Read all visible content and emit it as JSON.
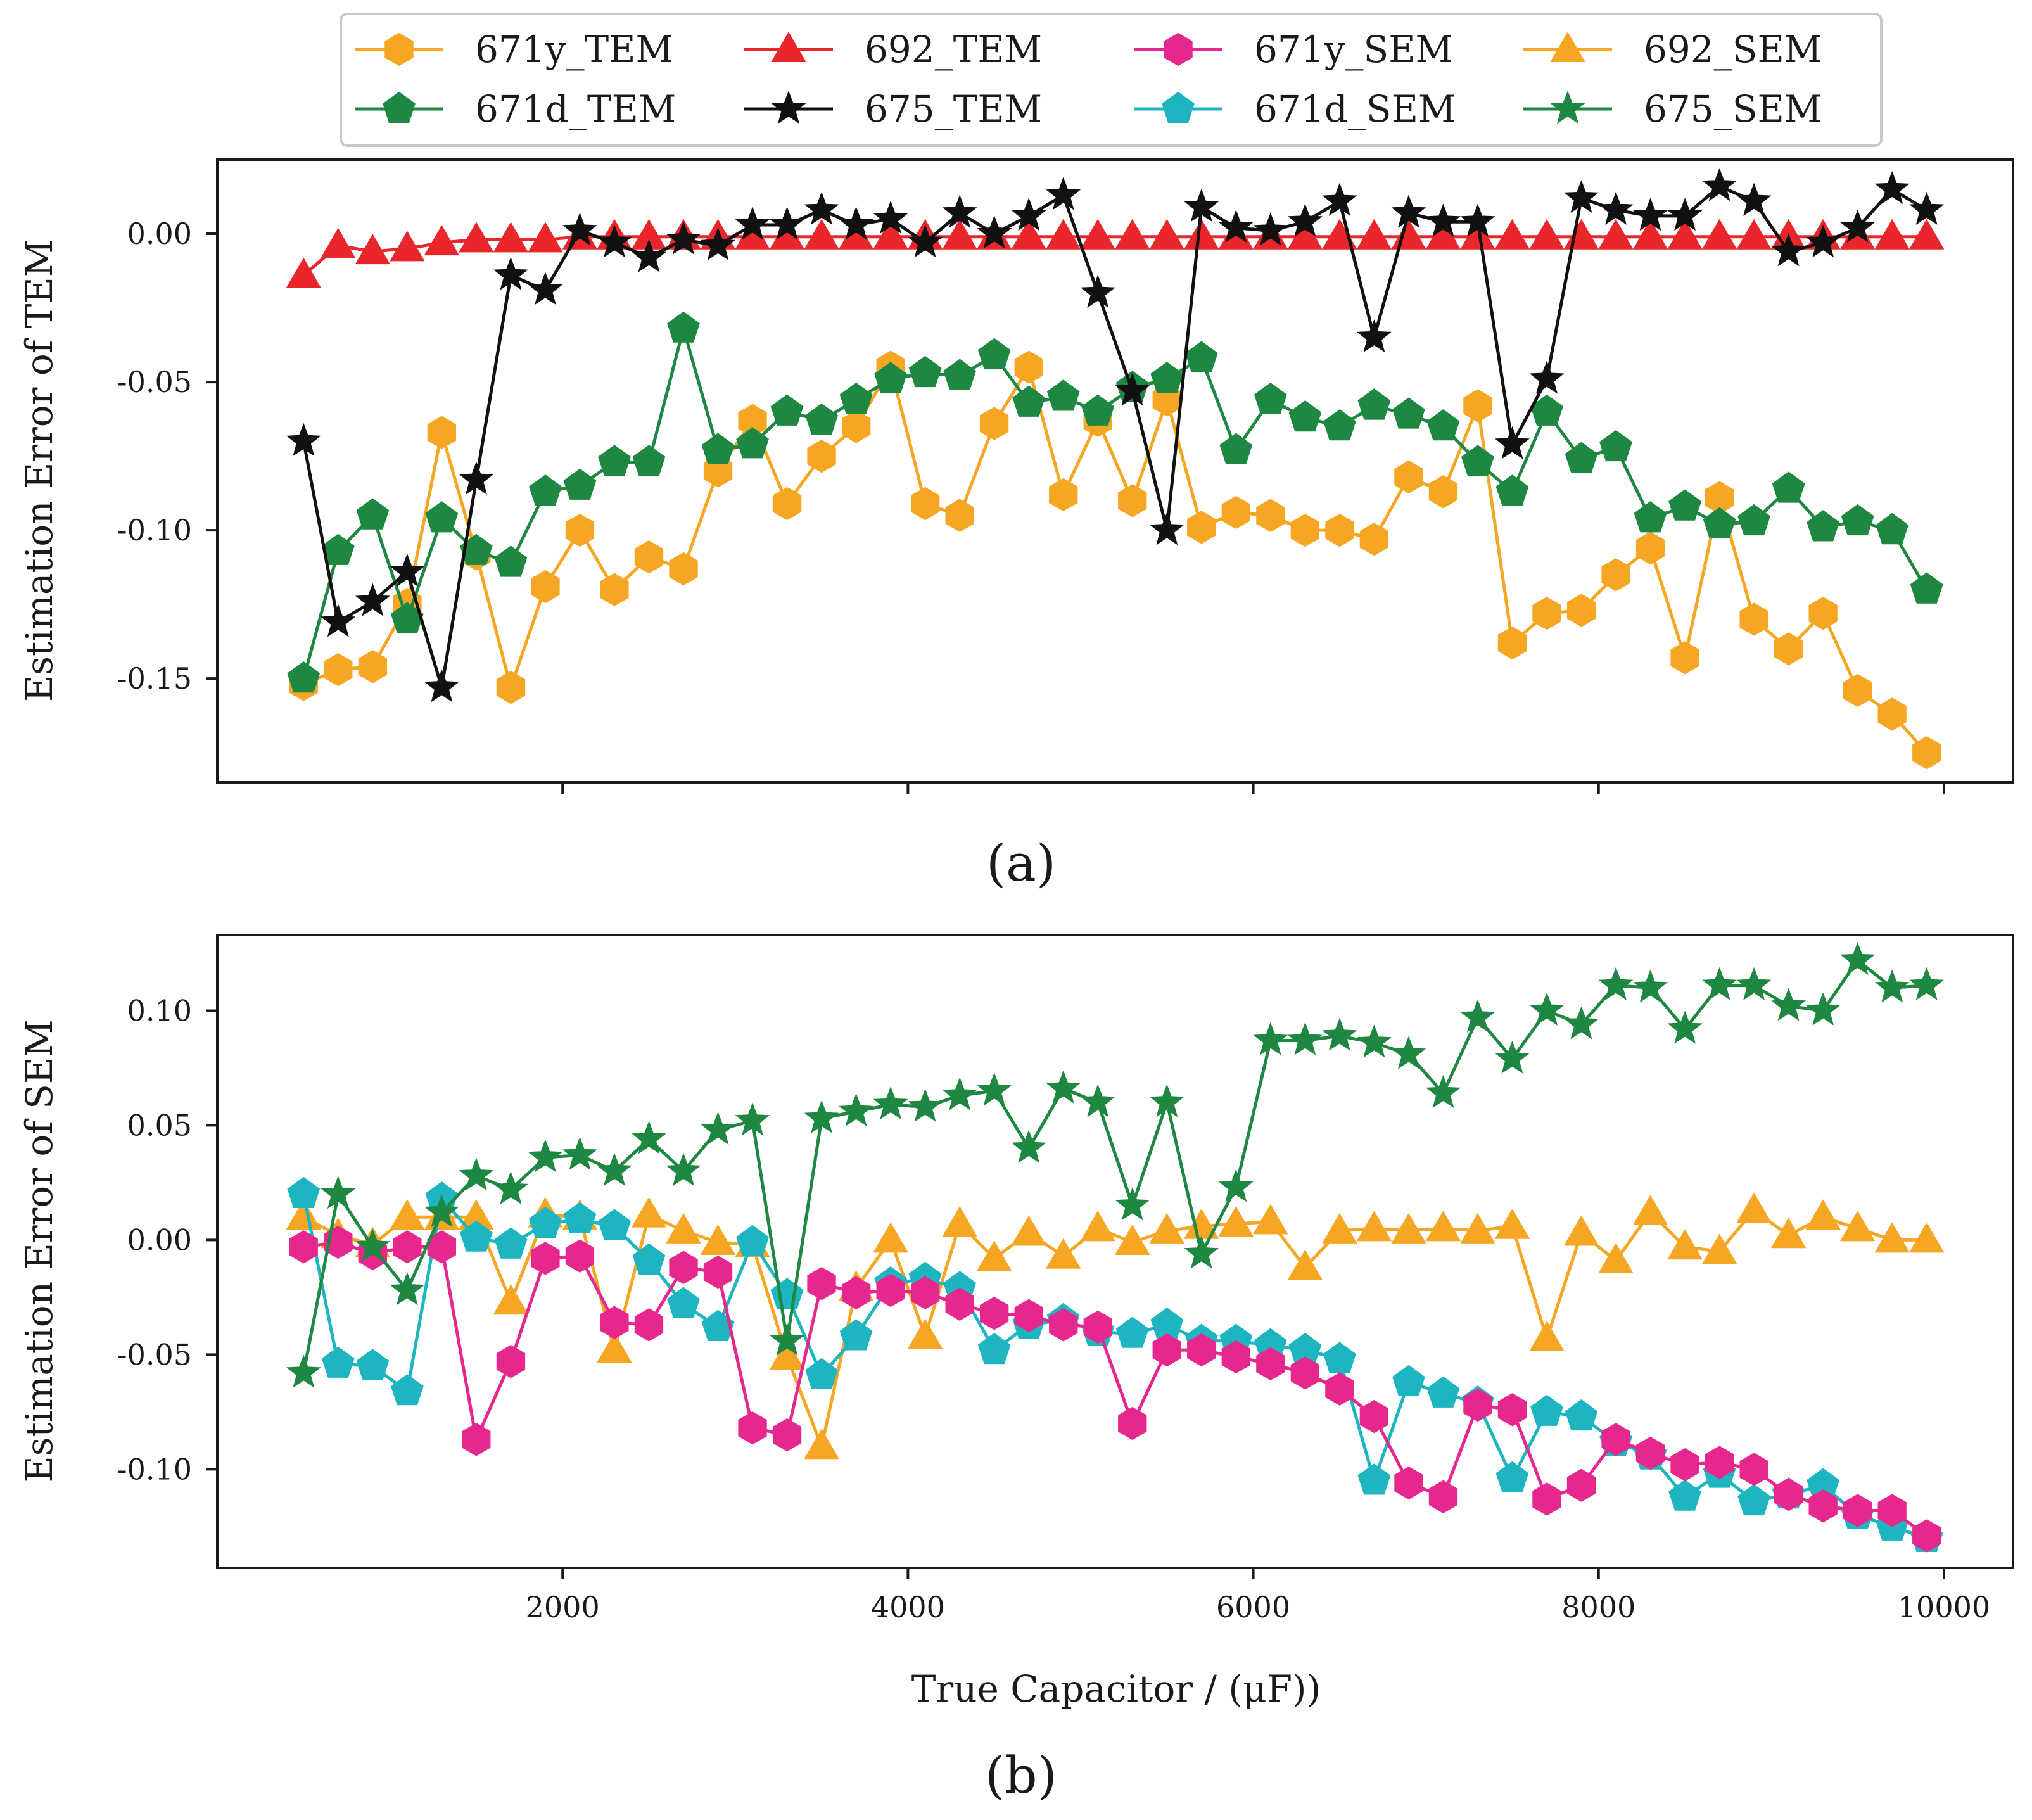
{
  "figure": {
    "legend": {
      "placement": "top-center",
      "entries": [
        {
          "label": "671y_TEM",
          "color": "#F5A623",
          "marker": "hexagon"
        },
        {
          "label": "692_TEM",
          "color": "#E8262B",
          "marker": "triangle"
        },
        {
          "label": "671y_SEM",
          "color": "#E6288E",
          "marker": "hexagon"
        },
        {
          "label": "692_SEM",
          "color": "#F5A623",
          "marker": "triangle"
        },
        {
          "label": "671d_TEM",
          "color": "#1E8741",
          "marker": "pentagon"
        },
        {
          "label": "675_TEM",
          "color": "#111111",
          "marker": "star"
        },
        {
          "label": "671d_SEM",
          "color": "#1DB5C0",
          "marker": "pentagon"
        },
        {
          "label": "675_SEM",
          "color": "#1E8741",
          "marker": "star"
        }
      ]
    }
  },
  "chart_data": [
    {
      "type": "line",
      "panel": "a",
      "caption": "(a)",
      "title": "",
      "xlabel": "",
      "ylabel": "Estimation Error of TEM",
      "xlim": [
        0,
        10400
      ],
      "ylim": [
        -0.185,
        0.025
      ],
      "xticks": [
        2000,
        4000,
        6000,
        8000,
        10000
      ],
      "xtick_labels_visible": false,
      "yticks": [
        0.0,
        -0.05,
        -0.1,
        -0.15
      ],
      "ytick_labels": [
        "0.00",
        "-0.05",
        "-0.10",
        "-0.15"
      ],
      "grid": false,
      "x": [
        500,
        700,
        900,
        1100,
        1300,
        1500,
        1700,
        1900,
        2100,
        2300,
        2500,
        2700,
        2900,
        3100,
        3300,
        3500,
        3700,
        3900,
        4100,
        4300,
        4500,
        4700,
        4900,
        5100,
        5300,
        5500,
        5700,
        5900,
        6100,
        6300,
        6500,
        6700,
        6900,
        7100,
        7300,
        7500,
        7700,
        7900,
        8100,
        8300,
        8500,
        8700,
        8900,
        9100,
        9300,
        9500,
        9700,
        9900
      ],
      "series": [
        {
          "name": "671y_TEM",
          "color": "#F5A623",
          "marker": "hexagon",
          "values": [
            -0.152,
            -0.147,
            -0.146,
            -0.125,
            -0.067,
            -0.108,
            -0.153,
            -0.119,
            -0.1,
            -0.12,
            -0.109,
            -0.113,
            -0.08,
            -0.063,
            -0.091,
            -0.075,
            -0.065,
            -0.045,
            -0.091,
            -0.095,
            -0.064,
            -0.045,
            -0.088,
            -0.063,
            -0.09,
            -0.056,
            -0.099,
            -0.094,
            -0.095,
            -0.1,
            -0.1,
            -0.103,
            -0.082,
            -0.087,
            -0.058,
            -0.138,
            -0.128,
            -0.127,
            -0.115,
            -0.106,
            -0.143,
            -0.089,
            -0.13,
            -0.14,
            -0.128,
            -0.154,
            -0.162,
            -0.175
          ]
        },
        {
          "name": "692_TEM",
          "color": "#E8262B",
          "marker": "triangle",
          "values": [
            -0.014,
            -0.004,
            -0.006,
            -0.005,
            -0.003,
            -0.002,
            -0.002,
            -0.002,
            -0.001,
            -0.001,
            -0.001,
            -0.001,
            -0.001,
            -0.001,
            -0.001,
            -0.001,
            -0.001,
            -0.001,
            -0.001,
            -0.001,
            -0.001,
            -0.001,
            -0.001,
            -0.001,
            -0.001,
            -0.001,
            -0.001,
            -0.001,
            -0.001,
            -0.001,
            -0.001,
            -0.001,
            -0.001,
            -0.001,
            -0.001,
            -0.001,
            -0.001,
            -0.001,
            -0.001,
            -0.001,
            -0.001,
            -0.001,
            -0.001,
            -0.001,
            -0.001,
            -0.001,
            -0.001,
            -0.001
          ]
        },
        {
          "name": "671d_TEM",
          "color": "#1E8741",
          "marker": "pentagon",
          "values": [
            -0.15,
            -0.107,
            -0.095,
            -0.13,
            -0.096,
            -0.107,
            -0.111,
            -0.087,
            -0.085,
            -0.077,
            -0.077,
            -0.032,
            -0.073,
            -0.071,
            -0.06,
            -0.063,
            -0.056,
            -0.049,
            -0.047,
            -0.048,
            -0.041,
            -0.057,
            -0.055,
            -0.06,
            -0.052,
            -0.049,
            -0.042,
            -0.073,
            -0.056,
            -0.062,
            -0.065,
            -0.058,
            -0.061,
            -0.065,
            -0.077,
            -0.087,
            -0.06,
            -0.076,
            -0.072,
            -0.096,
            -0.092,
            -0.098,
            -0.097,
            -0.086,
            -0.099,
            -0.097,
            -0.1,
            -0.12
          ]
        },
        {
          "name": "675_TEM",
          "color": "#111111",
          "marker": "star",
          "values": [
            -0.07,
            -0.131,
            -0.124,
            -0.114,
            -0.153,
            -0.083,
            -0.014,
            -0.019,
            0.001,
            -0.003,
            -0.008,
            -0.002,
            -0.004,
            0.003,
            0.003,
            0.008,
            0.003,
            0.005,
            -0.003,
            0.007,
            0.0,
            0.006,
            0.013,
            -0.02,
            -0.053,
            -0.1,
            0.009,
            0.002,
            0.001,
            0.004,
            0.011,
            -0.035,
            0.007,
            0.004,
            0.004,
            -0.071,
            -0.049,
            0.012,
            0.008,
            0.006,
            0.006,
            0.016,
            0.011,
            -0.006,
            -0.003,
            0.002,
            0.015,
            0.008
          ]
        }
      ]
    },
    {
      "type": "line",
      "panel": "b",
      "caption": "(b)",
      "title": "",
      "xlabel": "True Capacitor / (μF))",
      "ylabel": "Estimation Error of SEM",
      "xlim": [
        0,
        10400
      ],
      "ylim": [
        -0.143,
        0.133
      ],
      "xticks": [
        2000,
        4000,
        6000,
        8000,
        10000
      ],
      "xtick_labels": [
        "2000",
        "4000",
        "6000",
        "8000",
        "10000"
      ],
      "yticks": [
        0.1,
        0.05,
        0.0,
        -0.05,
        -0.1
      ],
      "ytick_labels": [
        "0.10",
        "0.05",
        "0.00",
        "-0.05",
        "-0.10"
      ],
      "grid": false,
      "x": [
        500,
        700,
        900,
        1100,
        1300,
        1500,
        1700,
        1900,
        2100,
        2300,
        2500,
        2700,
        2900,
        3100,
        3300,
        3500,
        3700,
        3900,
        4100,
        4300,
        4500,
        4700,
        4900,
        5100,
        5300,
        5500,
        5700,
        5900,
        6100,
        6300,
        6500,
        6700,
        6900,
        7100,
        7300,
        7500,
        7700,
        7900,
        8100,
        8300,
        8500,
        8700,
        8900,
        9100,
        9300,
        9500,
        9700,
        9900
      ],
      "series": [
        {
          "name": "692_SEM",
          "color": "#F5A623",
          "marker": "triangle",
          "values": [
            0.01,
            0.002,
            -0.002,
            0.01,
            0.01,
            0.01,
            -0.027,
            0.011,
            0.01,
            -0.048,
            0.011,
            0.004,
            -0.001,
            -0.002,
            -0.051,
            -0.09,
            -0.021,
            0.0,
            -0.042,
            0.007,
            -0.008,
            0.003,
            -0.007,
            0.005,
            -0.001,
            0.004,
            0.006,
            0.007,
            0.008,
            -0.012,
            0.004,
            0.005,
            0.004,
            0.005,
            0.004,
            0.006,
            -0.043,
            0.003,
            -0.009,
            0.012,
            -0.003,
            -0.005,
            0.013,
            0.002,
            0.01,
            0.005,
            0.0,
            0.0
          ]
        },
        {
          "name": "671d_SEM",
          "color": "#1DB5C0",
          "marker": "pentagon",
          "values": [
            0.02,
            -0.054,
            -0.055,
            -0.066,
            0.018,
            0.001,
            -0.002,
            0.007,
            0.009,
            0.006,
            -0.009,
            -0.028,
            -0.038,
            -0.001,
            -0.024,
            -0.059,
            -0.042,
            -0.019,
            -0.017,
            -0.021,
            -0.048,
            -0.037,
            -0.035,
            -0.04,
            -0.041,
            -0.037,
            -0.044,
            -0.044,
            -0.046,
            -0.048,
            -0.052,
            -0.105,
            -0.062,
            -0.067,
            -0.071,
            -0.104,
            -0.075,
            -0.077,
            -0.088,
            -0.094,
            -0.112,
            -0.102,
            -0.114,
            -0.111,
            -0.107,
            -0.12,
            -0.125,
            -0.13
          ]
        },
        {
          "name": "671y_SEM",
          "color": "#E6288E",
          "marker": "hexagon",
          "values": [
            -0.003,
            -0.001,
            -0.006,
            -0.003,
            -0.003,
            -0.087,
            -0.053,
            -0.008,
            -0.007,
            -0.036,
            -0.037,
            -0.012,
            -0.014,
            -0.082,
            -0.085,
            -0.019,
            -0.023,
            -0.022,
            -0.023,
            -0.028,
            -0.032,
            -0.033,
            -0.037,
            -0.038,
            -0.08,
            -0.048,
            -0.048,
            -0.051,
            -0.054,
            -0.058,
            -0.065,
            -0.077,
            -0.106,
            -0.112,
            -0.072,
            -0.074,
            -0.113,
            -0.107,
            -0.087,
            -0.093,
            -0.098,
            -0.097,
            -0.1,
            -0.111,
            -0.116,
            -0.118,
            -0.118,
            -0.129
          ]
        },
        {
          "name": "675_SEM",
          "color": "#1E8741",
          "marker": "star",
          "values": [
            -0.058,
            0.02,
            -0.003,
            -0.022,
            0.012,
            0.028,
            0.022,
            0.036,
            0.037,
            0.03,
            0.044,
            0.03,
            0.048,
            0.052,
            -0.044,
            0.053,
            0.056,
            0.059,
            0.058,
            0.063,
            0.065,
            0.04,
            0.066,
            0.06,
            0.015,
            0.06,
            -0.006,
            0.023,
            0.087,
            0.087,
            0.089,
            0.086,
            0.081,
            0.064,
            0.097,
            0.079,
            0.1,
            0.094,
            0.111,
            0.11,
            0.092,
            0.111,
            0.111,
            0.102,
            0.1,
            0.122,
            0.11,
            0.111
          ]
        }
      ]
    }
  ]
}
